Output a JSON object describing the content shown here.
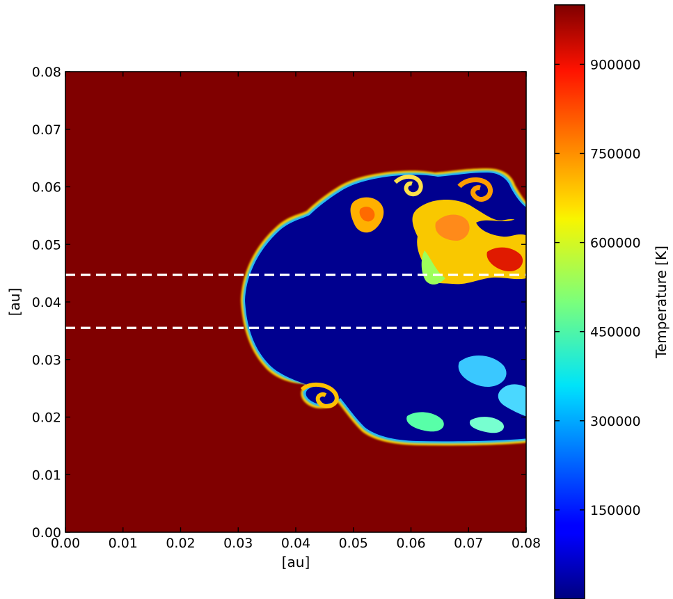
{
  "chart_data": {
    "type": "heatmap",
    "title": "",
    "xlabel": "[au]",
    "ylabel": "[au]",
    "xlim": [
      0.0,
      0.08
    ],
    "ylim": [
      0.0,
      0.08
    ],
    "xticks": [
      "0.00",
      "0.01",
      "0.02",
      "0.03",
      "0.04",
      "0.05",
      "0.06",
      "0.07",
      "0.08"
    ],
    "yticks": [
      "0.00",
      "0.01",
      "0.02",
      "0.03",
      "0.04",
      "0.05",
      "0.06",
      "0.07",
      "0.08"
    ],
    "colormap": "jet",
    "colorbar": {
      "label": "Temperature [K]",
      "range": [
        0,
        1000000
      ],
      "ticks": [
        "150000",
        "300000",
        "450000",
        "600000",
        "750000",
        "900000"
      ]
    },
    "background_temperature": 1000000,
    "cloud_temperature": 10000,
    "cloud": {
      "leading_edge_x": 0.031,
      "y_center": 0.04,
      "upper_edge_y": 0.061,
      "lower_edge_y": 0.016,
      "hot_mixing_region": {
        "x": [
          0.062,
          0.08
        ],
        "y": [
          0.044,
          0.058
        ],
        "temperature_range": [
          550000,
          800000
        ]
      }
    },
    "dashed_lines": [
      {
        "y": 0.0447,
        "color": "#ffffff"
      },
      {
        "y": 0.0355,
        "color": "#ffffff"
      }
    ],
    "grid": false
  }
}
